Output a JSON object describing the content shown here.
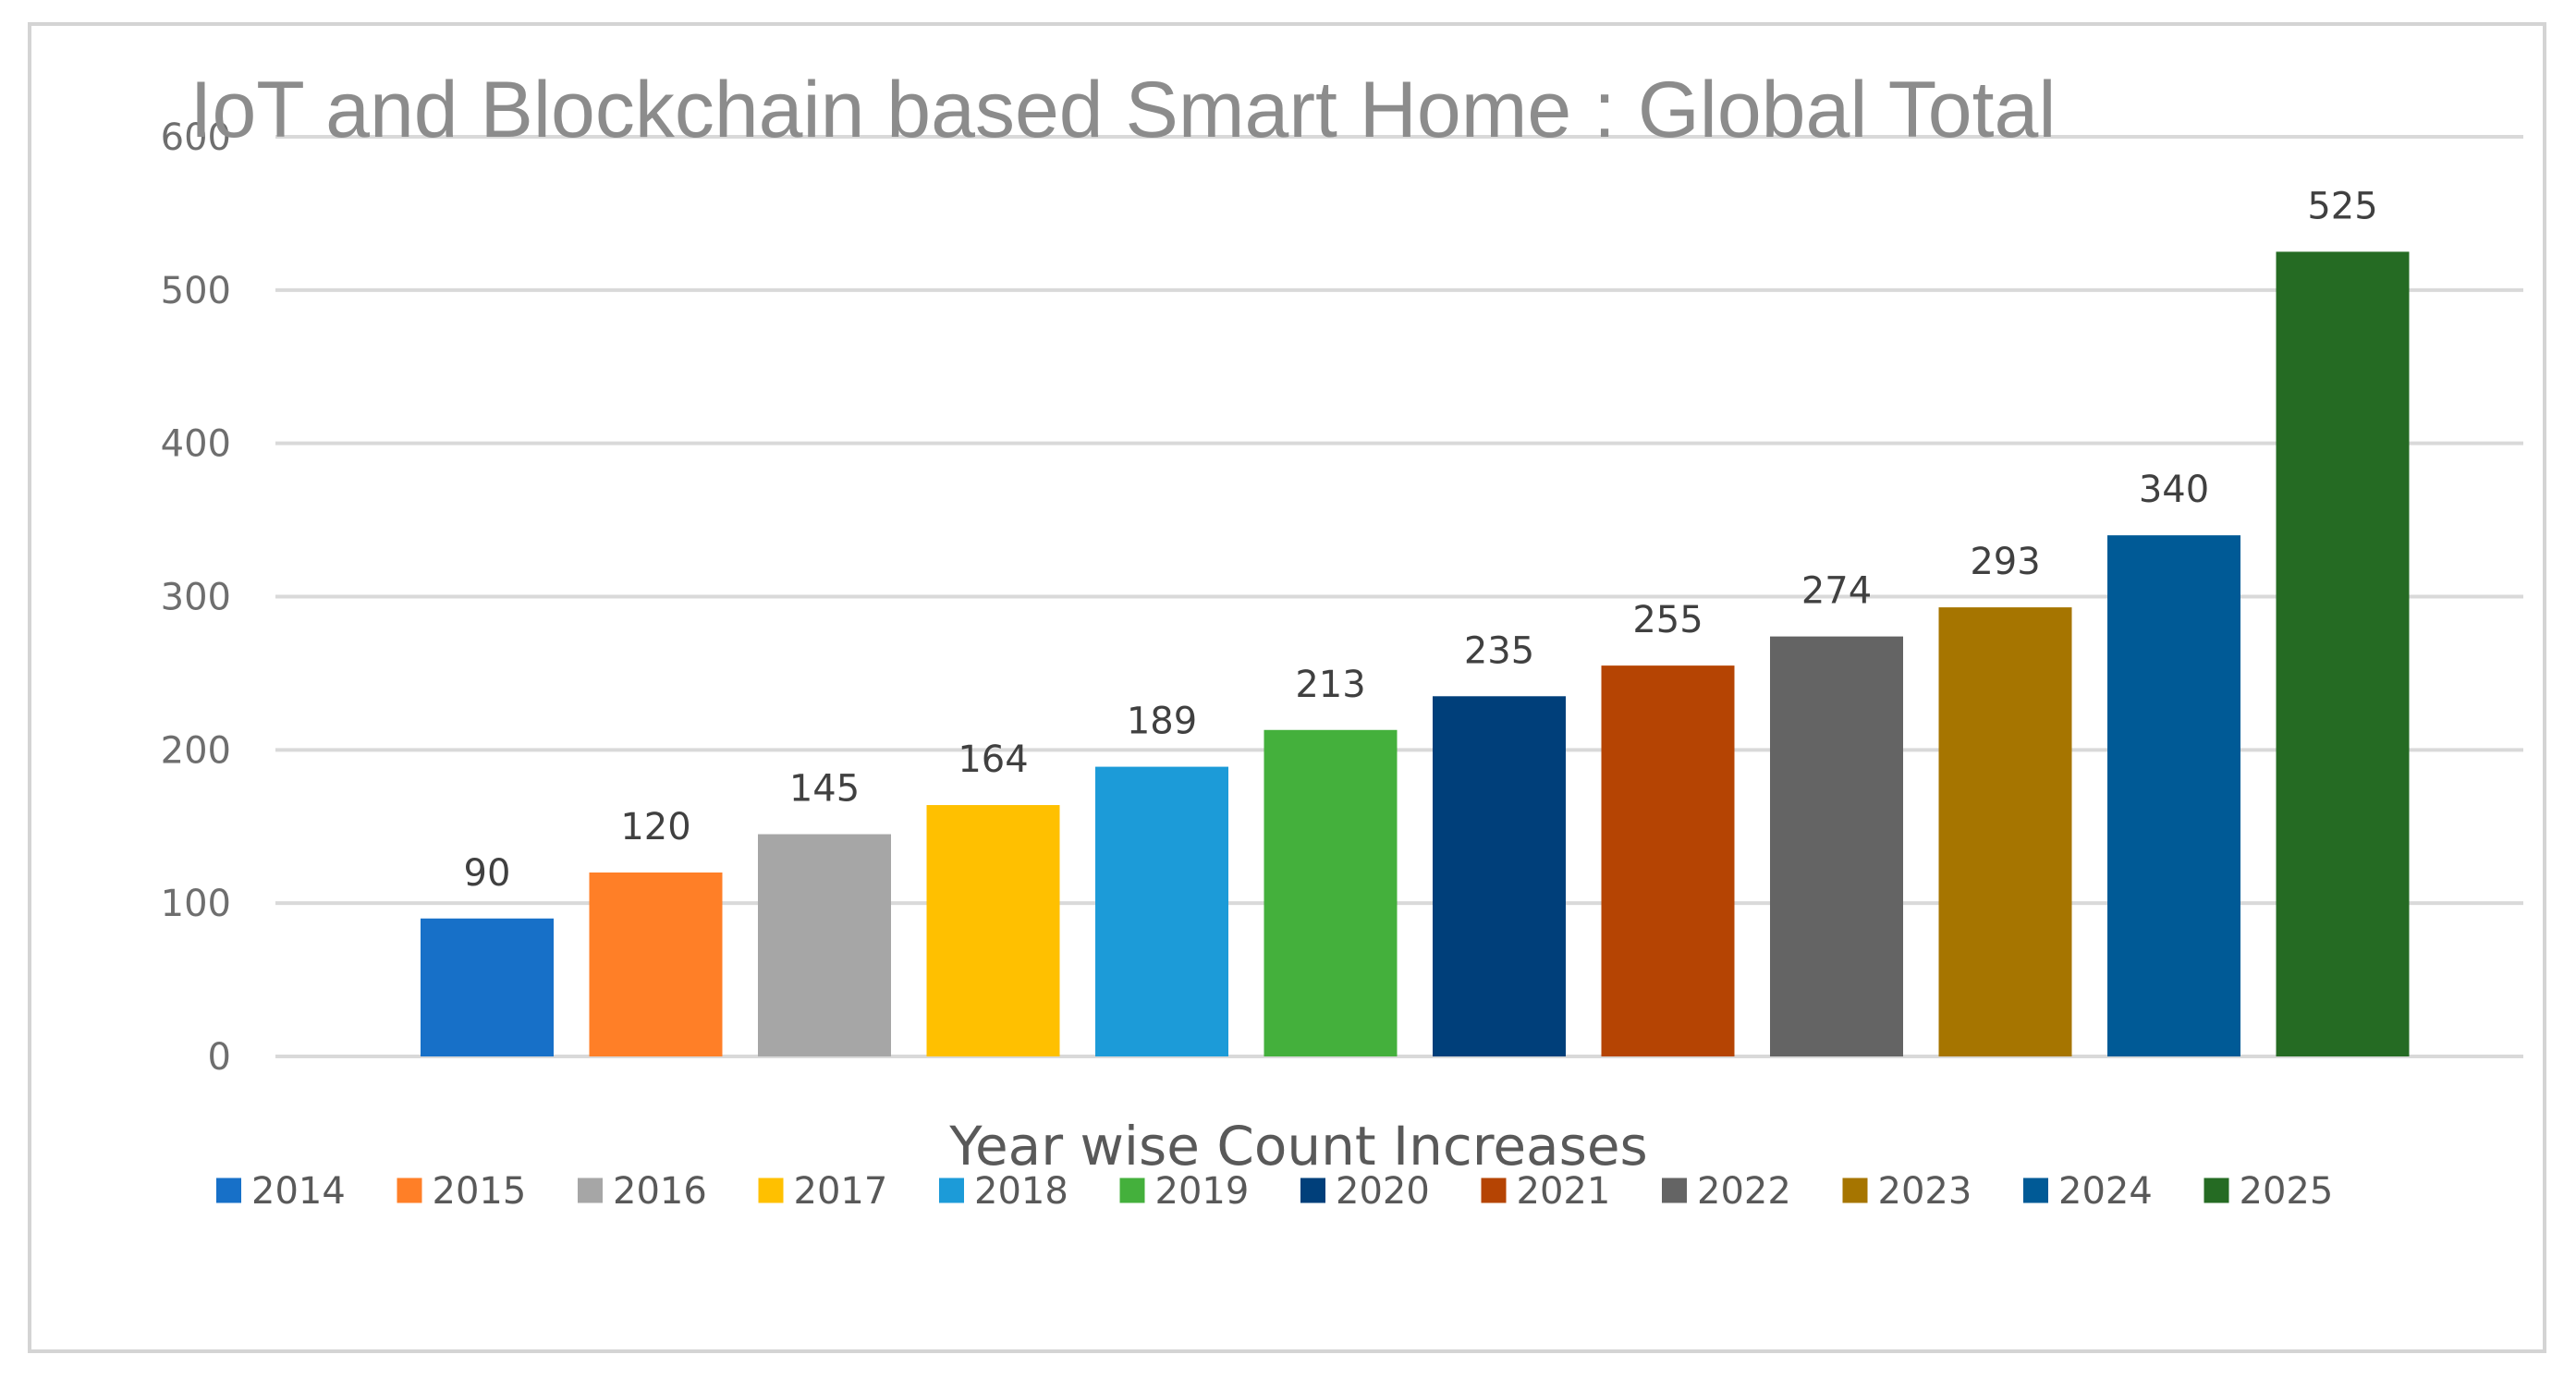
{
  "chart_data": {
    "type": "bar",
    "title": "IoT and Blockchain based Smart Home : Global Total",
    "xlabel": "Year wise Count Increases",
    "ylabel": "",
    "categories": [
      "2014",
      "2015",
      "2016",
      "2017",
      "2018",
      "2019",
      "2020",
      "2021",
      "2022",
      "2023",
      "2024",
      "2025"
    ],
    "values": [
      90,
      120,
      145,
      164,
      189,
      213,
      235,
      255,
      274,
      293,
      340,
      525
    ],
    "colors": [
      "#1770c8",
      "#ff7f27",
      "#a6a6a6",
      "#ffc000",
      "#1c9bd8",
      "#44b03c",
      "#003f7a",
      "#b54403",
      "#646464",
      "#a67500",
      "#005a96",
      "#256b23"
    ],
    "ylim": [
      0,
      600
    ],
    "yticks": [
      0,
      100,
      200,
      300,
      400,
      500,
      600
    ],
    "grid": true,
    "legend": "bottom"
  }
}
